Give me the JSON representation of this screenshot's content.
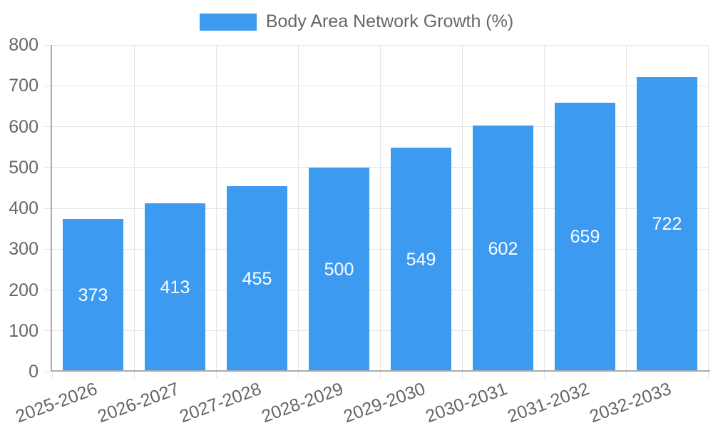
{
  "chart_data": {
    "type": "bar",
    "title": "Body Area Network Growth (%)",
    "legend_position": "top",
    "categories": [
      "2025-2026",
      "2026-2027",
      "2027-2028",
      "2028-2029",
      "2029-2030",
      "2030-2031",
      "2031-2032",
      "2032-2033"
    ],
    "series": [
      {
        "name": "Body Area Network Growth (%)",
        "values": [
          373,
          413,
          455,
          500,
          549,
          602,
          659,
          722
        ]
      }
    ],
    "bar_value_labels": [
      "373",
      "413",
      "455",
      "500",
      "549",
      "602",
      "659",
      "722"
    ],
    "xlabel": "",
    "ylabel": "",
    "ylim": [
      0,
      800
    ],
    "ytick_step": 100,
    "yticks": [
      0,
      100,
      200,
      300,
      400,
      500,
      600,
      700,
      800
    ],
    "grid": true,
    "x_tick_rotation_deg": -20,
    "colors": {
      "bar": "#3c9af0",
      "bar_label": "#ffffff",
      "axis_text": "#666666",
      "axis_line": "#ababab",
      "gridline": "#e5e5e5",
      "background": "#ffffff"
    }
  }
}
